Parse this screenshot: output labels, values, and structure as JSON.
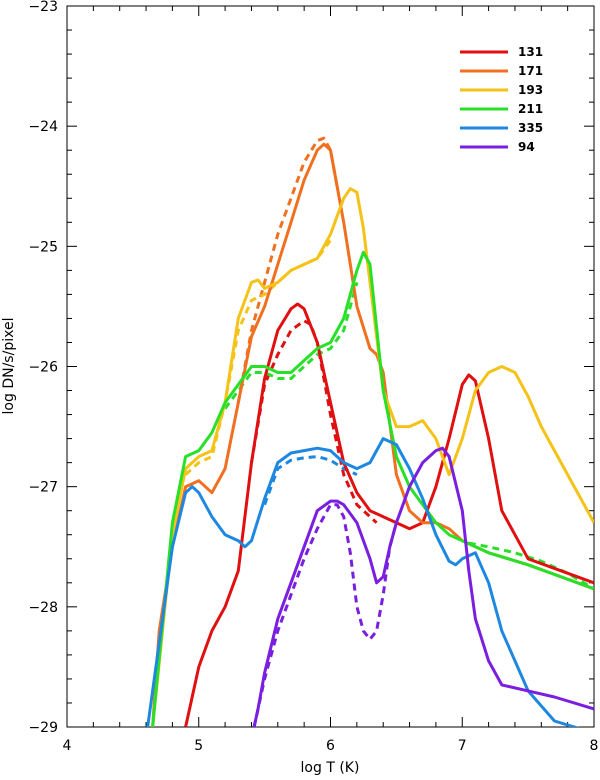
{
  "chart_data": {
    "type": "line",
    "title": "",
    "xlabel": "log T (K)",
    "ylabel": "log DN/s/pixel",
    "xlim": [
      4,
      8
    ],
    "ylim": [
      -29,
      -23
    ],
    "xticks": [
      4,
      5,
      6,
      7,
      8
    ],
    "yticks": [
      -29,
      -28,
      -27,
      -26,
      -25,
      -24,
      -23
    ],
    "grid": false,
    "legend": "top-right",
    "series": [
      {
        "name": "131",
        "color": "#e01010",
        "x": [
          4.9,
          5.0,
          5.1,
          5.2,
          5.3,
          5.4,
          5.5,
          5.6,
          5.7,
          5.75,
          5.8,
          5.9,
          6.0,
          6.1,
          6.2,
          6.3,
          6.4,
          6.5,
          6.6,
          6.7,
          6.8,
          6.9,
          7.0,
          7.05,
          7.1,
          7.2,
          7.3,
          7.5,
          8.0
        ],
        "values": [
          -29.0,
          -28.5,
          -28.2,
          -28.0,
          -27.7,
          -26.8,
          -26.1,
          -25.7,
          -25.52,
          -25.48,
          -25.52,
          -25.8,
          -26.3,
          -26.8,
          -27.05,
          -27.2,
          -27.25,
          -27.3,
          -27.35,
          -27.3,
          -27.0,
          -26.6,
          -26.15,
          -26.07,
          -26.12,
          -26.6,
          -27.2,
          -27.6,
          -27.8
        ]
      },
      {
        "name": "171",
        "color": "#f07020",
        "x": [
          4.65,
          4.7,
          4.8,
          4.9,
          5.0,
          5.1,
          5.2,
          5.3,
          5.4,
          5.5,
          5.6,
          5.7,
          5.8,
          5.9,
          5.95,
          6.0,
          6.1,
          6.2,
          6.3,
          6.35,
          6.4,
          6.5,
          6.6,
          6.7,
          6.8,
          6.9,
          7.0,
          7.2,
          7.5,
          8.0
        ],
        "values": [
          -29.0,
          -28.2,
          -27.5,
          -27.0,
          -26.95,
          -27.05,
          -26.85,
          -26.3,
          -25.75,
          -25.5,
          -25.15,
          -24.8,
          -24.45,
          -24.2,
          -24.15,
          -24.2,
          -24.8,
          -25.5,
          -25.85,
          -25.9,
          -26.05,
          -26.9,
          -27.2,
          -27.3,
          -27.3,
          -27.35,
          -27.45,
          -27.55,
          -27.65,
          -27.85
        ]
      },
      {
        "name": "193",
        "color": "#f5c218",
        "x": [
          4.65,
          4.8,
          4.9,
          5.0,
          5.1,
          5.2,
          5.3,
          5.4,
          5.45,
          5.5,
          5.6,
          5.7,
          5.8,
          5.9,
          6.0,
          6.1,
          6.15,
          6.2,
          6.25,
          6.3,
          6.4,
          6.5,
          6.6,
          6.7,
          6.8,
          6.9,
          7.0,
          7.1,
          7.2,
          7.3,
          7.4,
          7.5,
          7.6,
          7.8,
          8.0
        ],
        "values": [
          -29.0,
          -27.4,
          -26.85,
          -26.75,
          -26.7,
          -26.3,
          -25.6,
          -25.3,
          -25.28,
          -25.35,
          -25.3,
          -25.2,
          -25.15,
          -25.1,
          -24.9,
          -24.6,
          -24.52,
          -24.55,
          -24.85,
          -25.3,
          -26.2,
          -26.5,
          -26.5,
          -26.45,
          -26.6,
          -26.9,
          -26.6,
          -26.2,
          -26.05,
          -26.0,
          -26.05,
          -26.25,
          -26.5,
          -26.9,
          -27.3
        ]
      },
      {
        "name": "211",
        "color": "#28e028",
        "x": [
          4.65,
          4.8,
          4.9,
          5.0,
          5.1,
          5.2,
          5.3,
          5.4,
          5.5,
          5.6,
          5.7,
          5.8,
          5.9,
          6.0,
          6.1,
          6.2,
          6.25,
          6.3,
          6.4,
          6.5,
          6.6,
          6.7,
          6.8,
          6.9,
          7.0,
          7.2,
          7.5,
          8.0
        ],
        "values": [
          -29.0,
          -27.3,
          -26.75,
          -26.7,
          -26.55,
          -26.3,
          -26.15,
          -26.0,
          -26.0,
          -26.05,
          -26.05,
          -25.95,
          -25.85,
          -25.8,
          -25.6,
          -25.2,
          -25.05,
          -25.15,
          -26.2,
          -26.75,
          -27.0,
          -27.15,
          -27.3,
          -27.4,
          -27.45,
          -27.55,
          -27.65,
          -27.85
        ]
      },
      {
        "name": "335",
        "color": "#1e88e0",
        "x": [
          4.6,
          4.7,
          4.8,
          4.9,
          4.95,
          5.0,
          5.1,
          5.2,
          5.3,
          5.35,
          5.4,
          5.5,
          5.6,
          5.7,
          5.8,
          5.9,
          6.0,
          6.1,
          6.2,
          6.3,
          6.4,
          6.5,
          6.6,
          6.7,
          6.8,
          6.9,
          6.95,
          7.0,
          7.1,
          7.2,
          7.3,
          7.5,
          7.7,
          8.0
        ],
        "values": [
          -29.1,
          -28.3,
          -27.5,
          -27.05,
          -27.0,
          -27.05,
          -27.25,
          -27.4,
          -27.45,
          -27.5,
          -27.45,
          -27.1,
          -26.8,
          -26.72,
          -26.7,
          -26.68,
          -26.7,
          -26.8,
          -26.85,
          -26.8,
          -26.6,
          -26.65,
          -26.85,
          -27.1,
          -27.4,
          -27.62,
          -27.65,
          -27.6,
          -27.55,
          -27.8,
          -28.2,
          -28.7,
          -28.95,
          -29.05
        ]
      },
      {
        "name": "94",
        "color": "#7a1ee0",
        "x": [
          5.42,
          5.45,
          5.5,
          5.6,
          5.7,
          5.8,
          5.9,
          6.0,
          6.05,
          6.1,
          6.2,
          6.3,
          6.35,
          6.4,
          6.45,
          6.5,
          6.6,
          6.7,
          6.8,
          6.85,
          6.9,
          7.0,
          7.05,
          7.1,
          7.2,
          7.3,
          7.5,
          7.7,
          8.0
        ],
        "values": [
          -29.0,
          -28.85,
          -28.55,
          -28.1,
          -27.8,
          -27.5,
          -27.2,
          -27.12,
          -27.12,
          -27.15,
          -27.3,
          -27.6,
          -27.8,
          -27.75,
          -27.5,
          -27.3,
          -27.0,
          -26.8,
          -26.7,
          -26.68,
          -26.75,
          -27.2,
          -27.7,
          -28.1,
          -28.45,
          -28.65,
          -28.7,
          -28.75,
          -28.85
        ]
      }
    ],
    "dashed_series": [
      {
        "name": "131",
        "color": "#e01010",
        "x": [
          5.4,
          5.5,
          5.6,
          5.7,
          5.8,
          5.85,
          5.9,
          6.0,
          6.1,
          6.2,
          6.3,
          6.35
        ],
        "values": [
          -26.8,
          -26.15,
          -25.9,
          -25.7,
          -25.62,
          -25.65,
          -25.8,
          -26.4,
          -26.9,
          -27.15,
          -27.25,
          -27.3
        ]
      },
      {
        "name": "171",
        "color": "#f07020",
        "x": [
          5.3,
          5.4,
          5.5,
          5.6,
          5.7,
          5.8,
          5.9,
          5.95,
          6.0,
          6.05
        ],
        "values": [
          -26.3,
          -25.7,
          -25.3,
          -24.9,
          -24.6,
          -24.3,
          -24.12,
          -24.1,
          -24.2,
          -24.5
        ]
      },
      {
        "name": "193",
        "color": "#f5c218",
        "x": [
          4.9,
          5.0,
          5.1,
          5.2,
          5.3,
          5.4,
          5.5,
          5.6,
          5.7,
          5.8,
          5.9,
          6.0
        ],
        "values": [
          -26.9,
          -26.8,
          -26.75,
          -26.3,
          -25.7,
          -25.45,
          -25.4,
          -25.3,
          -25.2,
          -25.15,
          -25.1,
          -24.95
        ]
      },
      {
        "name": "211",
        "color": "#28e028",
        "x": [
          5.2,
          5.3,
          5.4,
          5.5,
          5.6,
          5.7,
          5.8,
          5.9,
          6.0,
          6.1,
          6.2
        ],
        "values": [
          -26.35,
          -26.2,
          -26.05,
          -26.05,
          -26.1,
          -26.1,
          -26.0,
          -25.9,
          -25.85,
          -25.7,
          -25.3
        ]
      },
      {
        "name": "211",
        "color": "#28e028",
        "x": [
          7.05,
          7.2,
          7.4,
          7.6,
          7.8,
          8.0
        ],
        "values": [
          -27.47,
          -27.5,
          -27.55,
          -27.62,
          -27.72,
          -27.85
        ]
      },
      {
        "name": "335",
        "color": "#1e88e0",
        "x": [
          5.5,
          5.6,
          5.7,
          5.8,
          5.9,
          6.0,
          6.1,
          6.2
        ],
        "values": [
          -27.15,
          -26.85,
          -26.78,
          -26.76,
          -26.75,
          -26.78,
          -26.85,
          -26.9
        ]
      },
      {
        "name": "94",
        "color": "#7a1ee0",
        "x": [
          5.42,
          5.5,
          5.6,
          5.7,
          5.8,
          5.9,
          6.0,
          6.05,
          6.1,
          6.15,
          6.2,
          6.25,
          6.3,
          6.35,
          6.4,
          6.45,
          6.5
        ],
        "values": [
          -29.0,
          -28.6,
          -28.2,
          -27.9,
          -27.6,
          -27.35,
          -27.15,
          -27.15,
          -27.25,
          -27.55,
          -28.0,
          -28.2,
          -28.27,
          -28.2,
          -27.9,
          -27.5,
          -27.3
        ]
      }
    ]
  }
}
